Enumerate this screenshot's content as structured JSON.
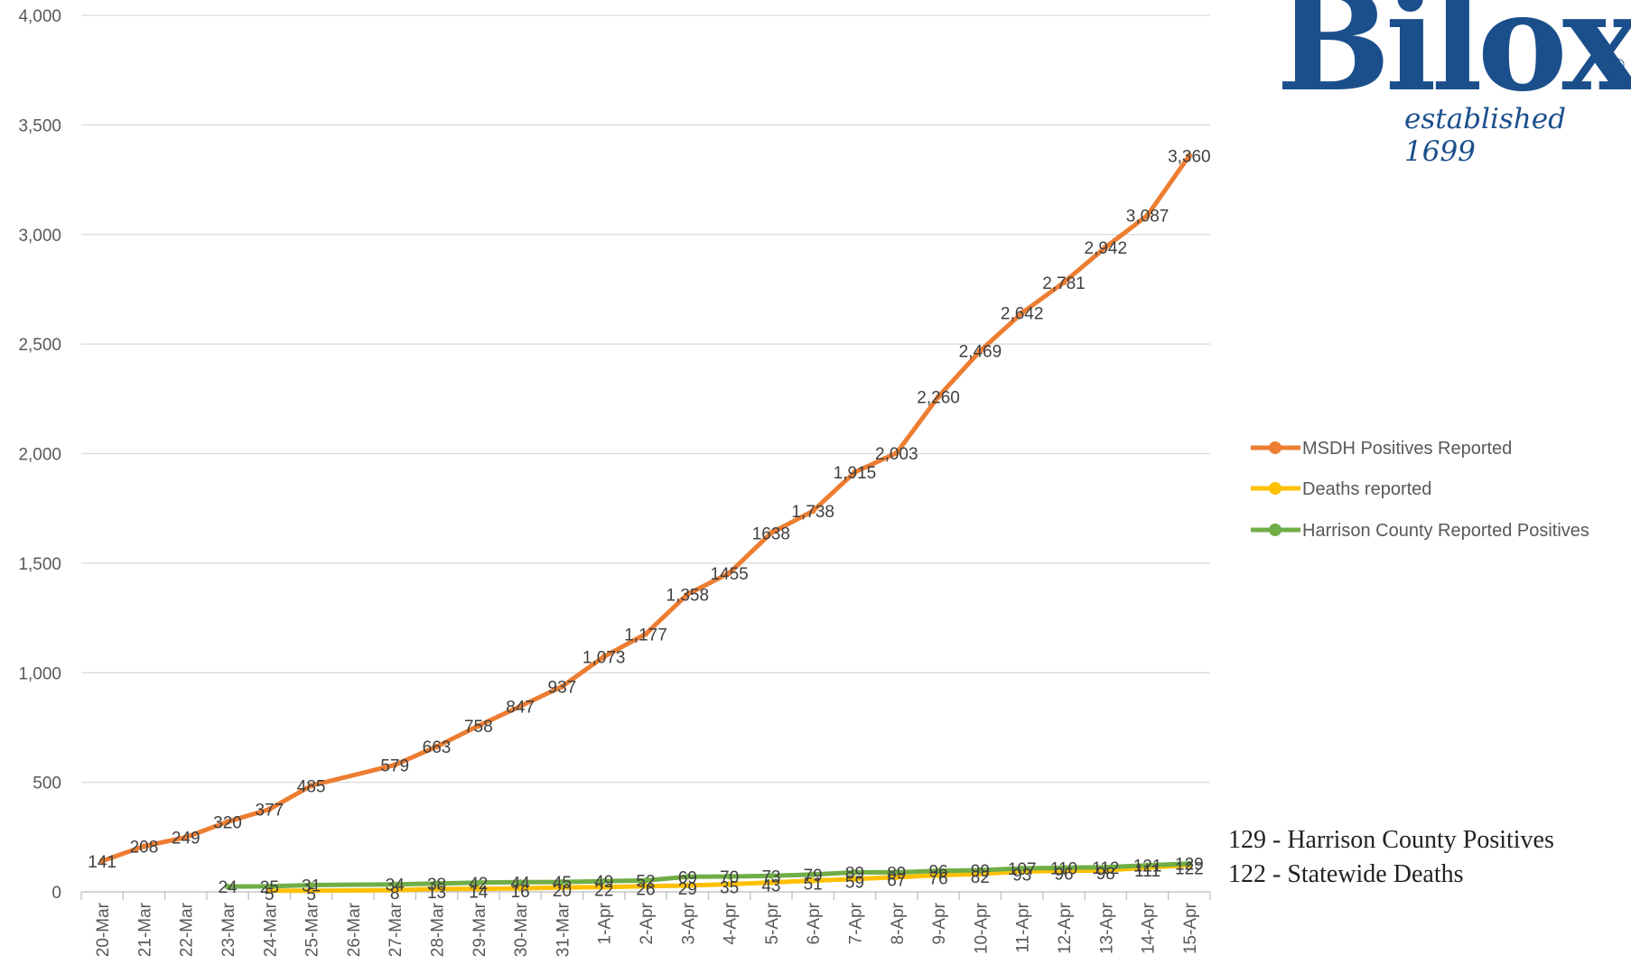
{
  "logo": {
    "name": "Biloxi",
    "registered": "®",
    "tagline": "established 1699"
  },
  "summary": {
    "lines": [
      "129 - Harrison County Positives",
      "122 - Statewide Deaths"
    ]
  },
  "chart_data": {
    "type": "line",
    "title": "",
    "xlabel": "",
    "ylabel": "",
    "ylim": [
      0,
      4000
    ],
    "yticks": [
      0,
      500,
      1000,
      1500,
      2000,
      2500,
      3000,
      3500,
      4000
    ],
    "ytick_labels": [
      "0",
      "500",
      "1,000",
      "1,500",
      "2,000",
      "2,500",
      "3,000",
      "3,500",
      "4,000"
    ],
    "grid": true,
    "legend_position": "right",
    "categories": [
      "20-Mar",
      "21-Mar",
      "22-Mar",
      "23-Mar",
      "24-Mar",
      "25-Mar",
      "26-Mar",
      "27-Mar",
      "28-Mar",
      "29-Mar",
      "30-Mar",
      "31-Mar",
      "1-Apr",
      "2-Apr",
      "3-Apr",
      "4-Apr",
      "5-Apr",
      "6-Apr",
      "7-Apr",
      "8-Apr",
      "9-Apr",
      "10-Apr",
      "11-Apr",
      "12-Apr",
      "13-Apr",
      "14-Apr",
      "15-Apr"
    ],
    "series": [
      {
        "name": "MSDH Positives Reported",
        "color": "#ed7d31",
        "values": [
          141,
          208,
          249,
          320,
          377,
          485,
          null,
          579,
          663,
          758,
          847,
          937,
          1073,
          1177,
          1358,
          1455,
          1638,
          1738,
          1915,
          2003,
          2260,
          2469,
          2642,
          2781,
          2942,
          3087,
          3360
        ],
        "labels": [
          "141",
          "208",
          "249",
          "320",
          "377",
          "485",
          null,
          "579",
          "663",
          "758",
          "847",
          "937",
          "1,073",
          "1,177",
          "1,358",
          "1455",
          "1638",
          "1,738",
          "1,915",
          "2,003",
          "2,260",
          "2,469",
          "2,642",
          "2,781",
          "2,942",
          "3,087",
          "3,360"
        ]
      },
      {
        "name": "Deaths reported",
        "color": "#ffc000",
        "values": [
          null,
          null,
          null,
          null,
          5,
          5,
          null,
          8,
          13,
          14,
          16,
          20,
          22,
          26,
          29,
          35,
          43,
          51,
          59,
          67,
          76,
          82,
          93,
          96,
          98,
          111,
          122
        ],
        "labels": [
          null,
          null,
          null,
          null,
          "5",
          "5",
          null,
          "8",
          "13",
          "14",
          "16",
          "20",
          "22",
          "26",
          "29",
          "35",
          "43",
          "51",
          "59",
          "67",
          "76",
          "82",
          "93",
          "96",
          "98",
          "111",
          "122"
        ]
      },
      {
        "name": "Harrison County Reported Positives",
        "color": "#70ad47",
        "values": [
          null,
          null,
          null,
          24,
          25,
          31,
          null,
          34,
          38,
          42,
          44,
          45,
          49,
          52,
          69,
          70,
          73,
          79,
          89,
          89,
          96,
          99,
          107,
          110,
          112,
          121,
          129
        ],
        "labels": [
          null,
          null,
          null,
          "24",
          "25",
          "31",
          null,
          "34",
          "38",
          "42",
          "44",
          "45",
          "49",
          "52",
          "69",
          "70",
          "73",
          "79",
          "89",
          "89",
          "96",
          "99",
          "107",
          "110",
          "112",
          "121",
          "129"
        ]
      }
    ]
  }
}
